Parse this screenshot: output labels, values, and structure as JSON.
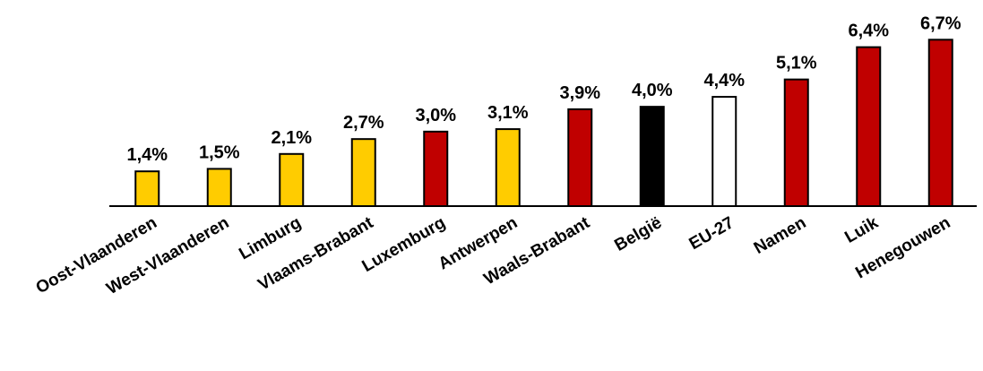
{
  "chart_data": {
    "type": "bar",
    "categories": [
      "Oost-Vlaanderen",
      "West-Vlaanderen",
      "Limburg",
      "Vlaams-Brabant",
      "Luxemburg",
      "Antwerpen",
      "Waals-Brabant",
      "België",
      "EU-27",
      "Namen",
      "Luik",
      "Henegouwen"
    ],
    "values": [
      1.4,
      1.5,
      2.1,
      2.7,
      3.0,
      3.1,
      3.9,
      4.0,
      4.4,
      5.1,
      6.4,
      6.7
    ],
    "value_labels": [
      "1,4%",
      "1,5%",
      "2,1%",
      "2,7%",
      "3,0%",
      "3,1%",
      "3,9%",
      "4,0%",
      "4,4%",
      "5,1%",
      "6,4%",
      "6,7%"
    ],
    "colors": [
      "#ffcc00",
      "#ffcc00",
      "#ffcc00",
      "#ffcc00",
      "#c00000",
      "#ffcc00",
      "#c00000",
      "#000000",
      "#ffffff",
      "#c00000",
      "#c00000",
      "#c00000"
    ],
    "ylim": [
      0,
      7
    ]
  }
}
